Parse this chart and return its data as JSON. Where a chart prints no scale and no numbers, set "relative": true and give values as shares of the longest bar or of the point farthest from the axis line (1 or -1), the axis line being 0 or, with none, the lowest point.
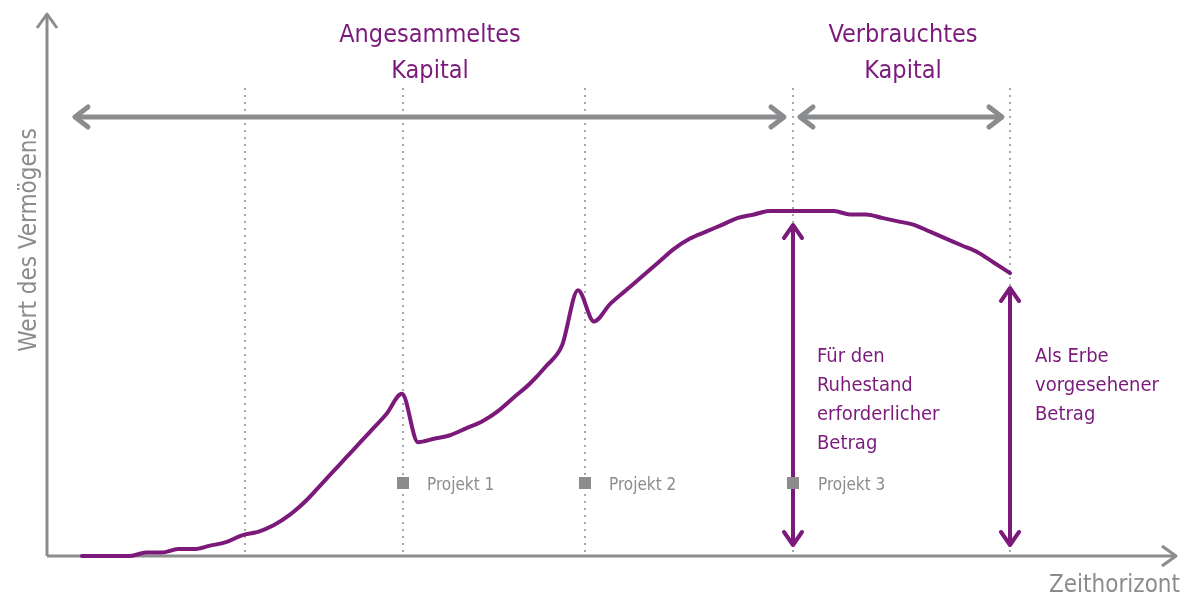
{
  "chart_data": {
    "type": "line",
    "relative": true,
    "xlabel": "Zeithorizont",
    "ylabel": "Wert des Vermögens",
    "categories": [
      null,
      null,
      null,
      null,
      null,
      null,
      null,
      null,
      null,
      null,
      null,
      null,
      null,
      null,
      null,
      null,
      null,
      null,
      null,
      null,
      null,
      null,
      null,
      null,
      null,
      null,
      null,
      null,
      null,
      null,
      null,
      null,
      null,
      null,
      null,
      null,
      null,
      null,
      null,
      null,
      null,
      null,
      null,
      null,
      null,
      null,
      null,
      null,
      null,
      null,
      null,
      null,
      null,
      null,
      null,
      null,
      null,
      null,
      null
    ],
    "series": [
      {
        "color": "#7b1a7b",
        "values": [
          0,
          0,
          0,
          0,
          0.01,
          0.01,
          0.02,
          0.02,
          0.03,
          0.04,
          0.06,
          0.07,
          0.09,
          0.12,
          0.16,
          0.21,
          0.26,
          0.31,
          0.36,
          0.41,
          0.47,
          0.33,
          0.34,
          0.35,
          0.37,
          0.39,
          0.42,
          0.46,
          0.5,
          0.55,
          0.61,
          0.77,
          0.68,
          0.73,
          0.77,
          0.81,
          0.85,
          0.89,
          0.92,
          0.94,
          0.96,
          0.98,
          0.99,
          1,
          1,
          1,
          1,
          1,
          0.99,
          0.99,
          0.98,
          0.97,
          0.96,
          0.94,
          0.92,
          0.9,
          0.88,
          0.85,
          0.82
        ]
      }
    ],
    "marker": "none",
    "line_style": "solid",
    "grid": "x",
    "annotations": [
      "Angesammeltes\nKapital",
      "Verbrauchtes\nKapital",
      "Für den\nRuhestand\nerforderlicher\nBetrag",
      "Als Erbe\nvorgesehener\nBetrag",
      "Projekt 1",
      "Projekt 2",
      "Projekt 3"
    ]
  }
}
